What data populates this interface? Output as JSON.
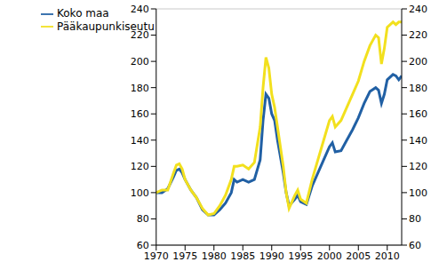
{
  "chart_data": {
    "type": "line",
    "x": [
      1970,
      1971,
      1972,
      1973,
      1973.5,
      1974,
      1974.5,
      1975,
      1976,
      1977,
      1978,
      1979,
      1980,
      1981,
      1982,
      1983,
      1983.5,
      1984,
      1985,
      1986,
      1987,
      1988,
      1988.5,
      1989,
      1989.5,
      1990,
      1990.5,
      1991,
      1992,
      1992.5,
      1993,
      1994,
      1994.5,
      1995,
      1996,
      1997,
      1998,
      1999,
      2000,
      2000.5,
      2001,
      2002,
      2003,
      2004,
      2005,
      2006,
      2007,
      2008,
      2008.5,
      2009,
      2009.5,
      2010,
      2011,
      2011.5,
      2012,
      2012.5
    ],
    "series": [
      {
        "name": "Koko maa",
        "color": "#2160a4",
        "values": [
          100,
          100,
          103,
          112,
          117,
          118,
          115,
          110,
          102,
          96,
          87,
          83,
          83,
          87,
          92,
          100,
          110,
          108,
          110,
          108,
          110,
          125,
          155,
          175,
          172,
          160,
          155,
          140,
          115,
          100,
          90,
          95,
          98,
          93,
          91,
          105,
          115,
          125,
          135,
          138,
          131,
          132,
          140,
          148,
          157,
          168,
          177,
          180,
          178,
          168,
          175,
          186,
          190,
          189,
          186,
          189
        ]
      },
      {
        "name": "Pääkaupunkiseutu",
        "color": "#f2e01e",
        "values": [
          100,
          102,
          102,
          115,
          121,
          122,
          118,
          110,
          102,
          96,
          88,
          83,
          84,
          90,
          98,
          110,
          120,
          120,
          121,
          118,
          123,
          150,
          180,
          203,
          195,
          175,
          165,
          150,
          120,
          100,
          88,
          98,
          102,
          95,
          92,
          110,
          125,
          140,
          155,
          158,
          150,
          155,
          165,
          175,
          185,
          200,
          212,
          220,
          218,
          198,
          210,
          226,
          230,
          228,
          230,
          230
        ]
      }
    ],
    "xlim": [
      1970,
      2012.5
    ],
    "xticks": [
      1970,
      1975,
      1980,
      1985,
      1990,
      1995,
      2000,
      2005,
      2010
    ],
    "ylim": [
      60,
      240
    ],
    "yticks": [
      60,
      80,
      100,
      120,
      140,
      160,
      180,
      200,
      220,
      240
    ],
    "y2lim": [
      60,
      240
    ],
    "y2ticks": [
      60,
      80,
      100,
      120,
      140,
      160,
      180,
      200,
      220,
      240
    ],
    "grid": true,
    "legend": "top-left"
  }
}
